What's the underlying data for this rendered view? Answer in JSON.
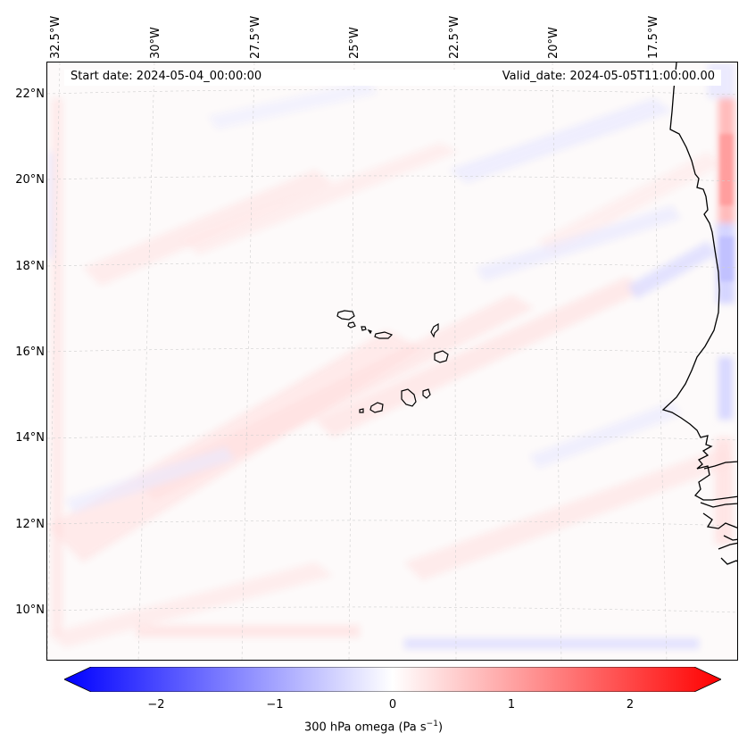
{
  "header": {
    "start_date": "Start date: 2024-05-04_00:00:00",
    "valid_date": "Valid_date: 2024-05-05T11:00:00.00"
  },
  "axes": {
    "longitude_ticks": [
      "32.5°W",
      "30°W",
      "27.5°W",
      "25°W",
      "22.5°W",
      "20°W",
      "17.5°W"
    ],
    "latitude_ticks": [
      "22°N",
      "20°N",
      "18°N",
      "16°N",
      "14°N",
      "12°N",
      "10°N"
    ]
  },
  "colorbar": {
    "ticks": [
      "−2",
      "−1",
      "0",
      "1",
      "2"
    ],
    "label_prefix": "300 hPa omega (Pa s",
    "label_exponent": "−1",
    "label_suffix": ")",
    "colormap": "bwr",
    "range": [
      -2.5,
      2.5
    ],
    "extend": "both"
  },
  "colors": {
    "negative": "#0000ff",
    "zero": "#ffffff",
    "positive": "#ff0000",
    "coastline": "#000000",
    "gridline": "#cccccc"
  }
}
